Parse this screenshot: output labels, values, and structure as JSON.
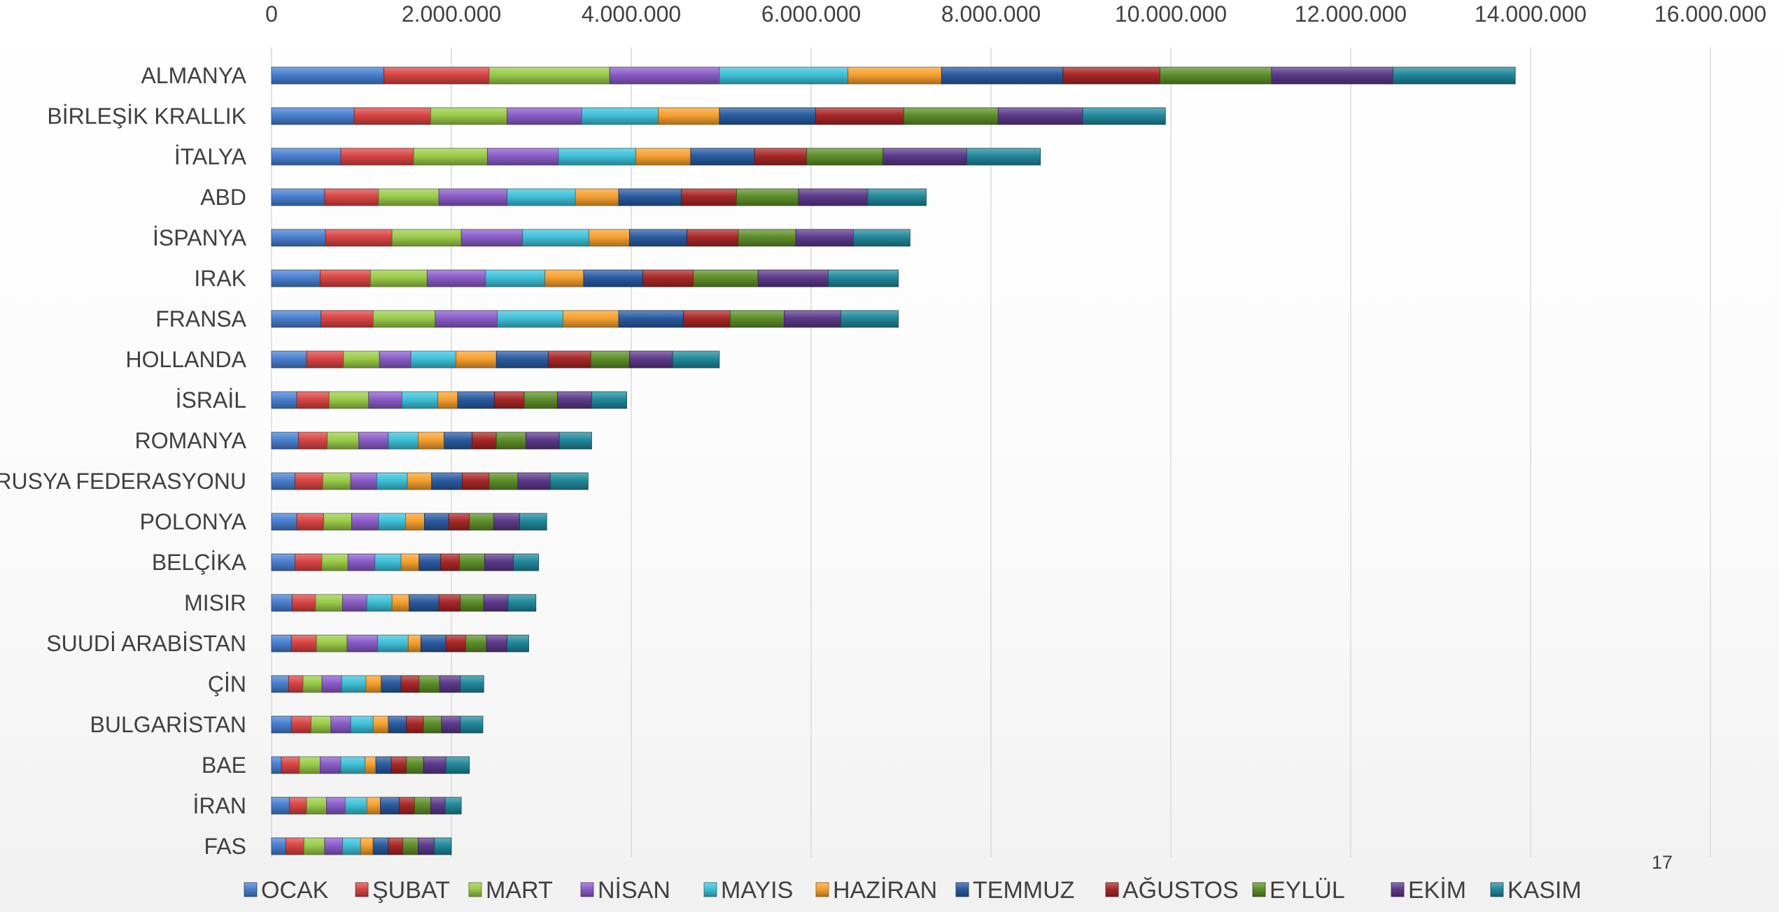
{
  "page_number": "17",
  "chart_data": {
    "type": "bar",
    "orientation": "horizontal",
    "stacked": true,
    "title": "",
    "xlabel": "",
    "ylabel": "",
    "xlim": [
      0,
      16000000
    ],
    "x_ticks": [
      0,
      2000000,
      4000000,
      6000000,
      8000000,
      10000000,
      12000000,
      14000000,
      16000000
    ],
    "x_tick_labels": [
      "0",
      "2.000.000",
      "4.000.000",
      "6.000.000",
      "8.000.000",
      "10.000.000",
      "12.000.000",
      "14.000.000",
      "16.000.000"
    ],
    "x_axis_position": "top",
    "grid": "vertical",
    "legend_position": "bottom",
    "categories": [
      "ALMANYA",
      "BİRLEŞİK KRALLIK",
      "İTALYA",
      "ABD",
      "İSPANYA",
      "IRAK",
      "FRANSA",
      "HOLLANDA",
      "İSRAİL",
      "ROMANYA",
      "RUSYA FEDERASYONU",
      "POLONYA",
      "BELÇİKA",
      "MISIR",
      "SUUDİ ARABİSTAN",
      "ÇİN",
      "BULGARİSTAN",
      "BAE",
      "İRAN",
      "FAS"
    ],
    "series": [
      {
        "name": "OCAK",
        "color": "#4A7FD0",
        "values": [
          1250000,
          920000,
          770000,
          590000,
          600000,
          540000,
          550000,
          390000,
          280000,
          300000,
          260000,
          280000,
          260000,
          230000,
          220000,
          190000,
          220000,
          110000,
          200000,
          160000
        ]
      },
      {
        "name": "ŞUBAT",
        "color": "#D94545",
        "values": [
          1170000,
          850000,
          810000,
          600000,
          740000,
          560000,
          580000,
          410000,
          360000,
          320000,
          310000,
          300000,
          300000,
          260000,
          280000,
          160000,
          220000,
          200000,
          190000,
          200000
        ]
      },
      {
        "name": "MART",
        "color": "#9ACB4A",
        "values": [
          1340000,
          850000,
          820000,
          670000,
          770000,
          630000,
          690000,
          400000,
          440000,
          350000,
          310000,
          310000,
          290000,
          300000,
          340000,
          210000,
          220000,
          230000,
          220000,
          230000
        ]
      },
      {
        "name": "NİSAN",
        "color": "#8A5CC8",
        "values": [
          1220000,
          830000,
          790000,
          760000,
          680000,
          650000,
          690000,
          350000,
          370000,
          330000,
          290000,
          300000,
          300000,
          270000,
          340000,
          220000,
          220000,
          230000,
          210000,
          200000
        ]
      },
      {
        "name": "MAYIS",
        "color": "#3FC0D8",
        "values": [
          1430000,
          850000,
          860000,
          760000,
          740000,
          660000,
          730000,
          500000,
          400000,
          330000,
          340000,
          300000,
          290000,
          280000,
          340000,
          270000,
          250000,
          270000,
          240000,
          200000
        ]
      },
      {
        "name": "HAZİRAN",
        "color": "#F5A030",
        "values": [
          1040000,
          680000,
          610000,
          480000,
          450000,
          430000,
          620000,
          450000,
          220000,
          290000,
          270000,
          210000,
          200000,
          190000,
          140000,
          170000,
          170000,
          120000,
          150000,
          140000
        ]
      },
      {
        "name": "TEMMUZ",
        "color": "#2A5BA0",
        "values": [
          1350000,
          1070000,
          710000,
          700000,
          640000,
          660000,
          720000,
          580000,
          410000,
          310000,
          340000,
          270000,
          240000,
          330000,
          280000,
          220000,
          200000,
          170000,
          210000,
          170000
        ]
      },
      {
        "name": "AĞUSTOS",
        "color": "#A82828",
        "values": [
          1080000,
          980000,
          580000,
          610000,
          570000,
          560000,
          520000,
          470000,
          330000,
          270000,
          300000,
          230000,
          210000,
          240000,
          220000,
          200000,
          190000,
          170000,
          170000,
          160000
        ]
      },
      {
        "name": "EYLÜL",
        "color": "#5E8E2A",
        "values": [
          1240000,
          1050000,
          850000,
          690000,
          640000,
          720000,
          600000,
          430000,
          370000,
          330000,
          320000,
          270000,
          280000,
          260000,
          230000,
          230000,
          200000,
          190000,
          180000,
          170000
        ]
      },
      {
        "name": "EKİM",
        "color": "#5C3A8A",
        "values": [
          1350000,
          940000,
          930000,
          770000,
          640000,
          780000,
          630000,
          480000,
          380000,
          370000,
          360000,
          290000,
          320000,
          270000,
          230000,
          230000,
          210000,
          250000,
          160000,
          180000
        ]
      },
      {
        "name": "KASIM",
        "color": "#22889A",
        "values": [
          1360000,
          920000,
          820000,
          650000,
          630000,
          780000,
          640000,
          520000,
          390000,
          360000,
          420000,
          300000,
          280000,
          310000,
          240000,
          260000,
          250000,
          260000,
          180000,
          190000
        ]
      }
    ]
  }
}
